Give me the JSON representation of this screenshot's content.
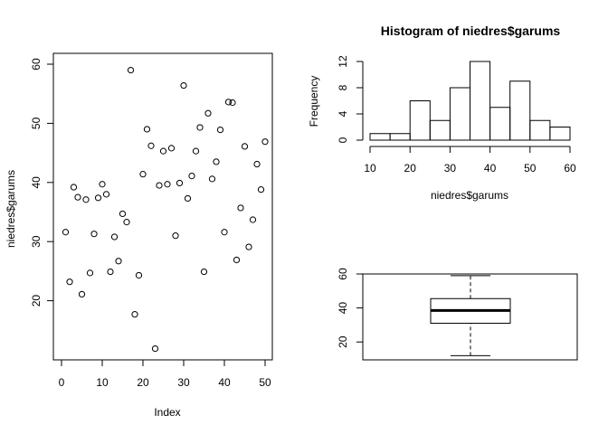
{
  "chart_data": [
    {
      "type": "scatter",
      "xlabel": "Index",
      "ylabel": "niedres$garums",
      "xlim": [
        0,
        50
      ],
      "ylim": [
        10,
        60
      ],
      "x_ticks": [
        "0",
        "10",
        "20",
        "30",
        "40",
        "50"
      ],
      "y_ticks": [
        "20",
        "30",
        "40",
        "50",
        "60"
      ],
      "series": [
        {
          "x": [
            1,
            2,
            3,
            4,
            5,
            6,
            7,
            8,
            9,
            10,
            11,
            12,
            13,
            14,
            15,
            16,
            17,
            18,
            19,
            20,
            21,
            22,
            23,
            24,
            25,
            26,
            27,
            28,
            29,
            30,
            31,
            32,
            33,
            34,
            35,
            36,
            37,
            38,
            39,
            40,
            41,
            42,
            43,
            44,
            45,
            46,
            47,
            48,
            49,
            50
          ],
          "values": [
            31.6,
            23.2,
            39.2,
            37.5,
            21.1,
            37.1,
            24.7,
            31.3,
            37.4,
            39.7,
            38.0,
            24.9,
            30.8,
            26.7,
            34.7,
            33.3,
            59.0,
            17.7,
            24.3,
            41.4,
            49.0,
            46.2,
            11.9,
            39.5,
            45.3,
            39.7,
            45.8,
            31.0,
            39.9,
            56.4,
            37.3,
            41.1,
            45.3,
            49.3,
            24.9,
            51.7,
            40.6,
            43.5,
            48.9,
            31.6,
            53.6,
            53.5,
            26.9,
            35.7,
            46.1,
            29.1,
            33.7,
            43.1,
            38.8,
            46.9
          ]
        }
      ]
    },
    {
      "type": "bar",
      "title": "Histogram of niedres$garums",
      "xlabel": "niedres$garums",
      "ylabel": "Frequency",
      "categories": [
        "10-15",
        "15-20",
        "20-25",
        "25-30",
        "30-35",
        "35-40",
        "40-45",
        "45-50",
        "50-55",
        "55-60"
      ],
      "bin_edges": [
        10,
        15,
        20,
        25,
        30,
        35,
        40,
        45,
        50,
        55,
        60
      ],
      "values": [
        1,
        1,
        6,
        3,
        8,
        12,
        5,
        9,
        3,
        2
      ],
      "xlim": [
        10,
        60
      ],
      "ylim": [
        0,
        12
      ],
      "x_ticks": [
        "10",
        "20",
        "30",
        "40",
        "50",
        "60"
      ],
      "y_ticks": [
        "0",
        "4",
        "8",
        "12"
      ]
    },
    {
      "type": "box",
      "ylim": [
        10,
        60
      ],
      "y_ticks": [
        "20",
        "40",
        "60"
      ],
      "whisker_low": 11.9,
      "q1": 31.0,
      "median": 38.5,
      "q3": 45.5,
      "whisker_high": 59.0
    }
  ]
}
